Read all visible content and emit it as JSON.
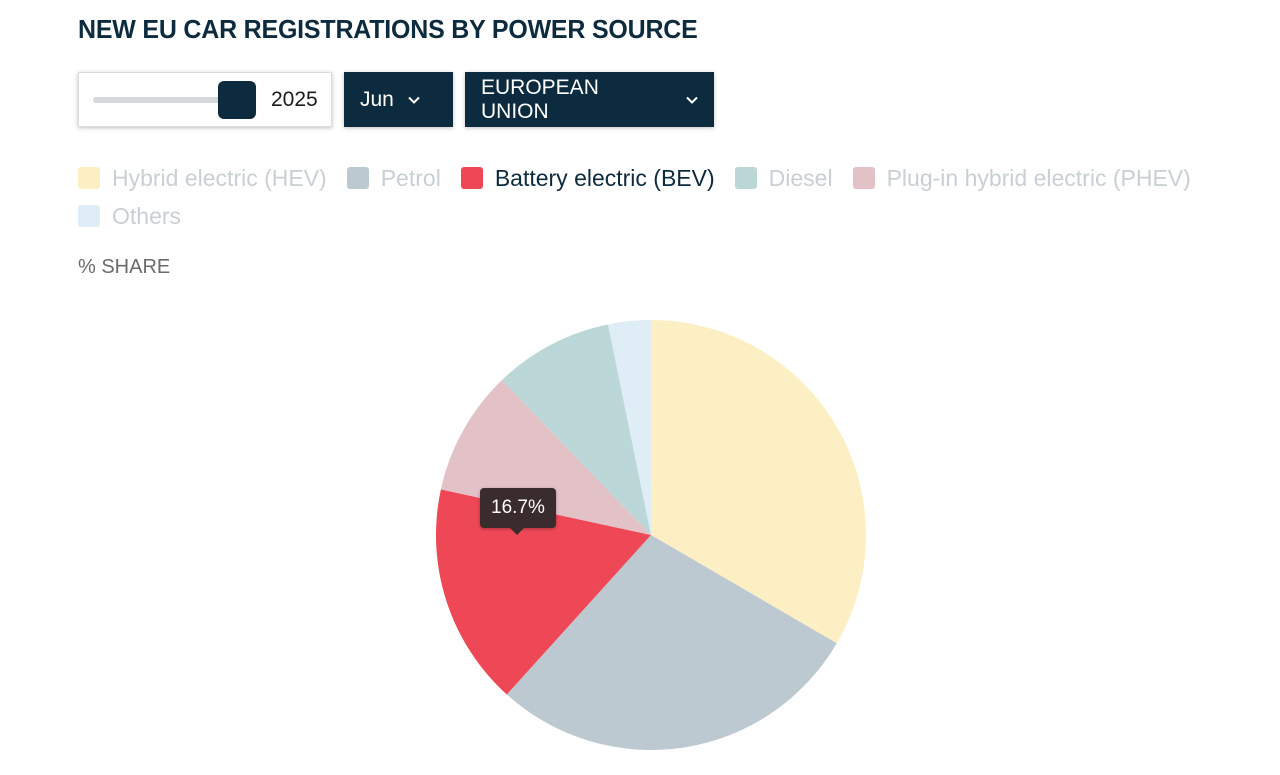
{
  "title": "NEW EU CAR REGISTRATIONS BY POWER SOURCE",
  "controls": {
    "year_slider_value": "2025",
    "month": "Jun",
    "region": "EUROPEAN UNION"
  },
  "subtitle": "% SHARE",
  "tooltip": "16.7%",
  "chart_data": {
    "type": "pie",
    "title": "NEW EU CAR REGISTRATIONS BY POWER SOURCE",
    "unit": "% SHARE",
    "highlighted": "Battery electric (BEV)",
    "slices": [
      {
        "label": "Hybrid electric (HEV)",
        "value": 33.4,
        "color": "#fcefc4"
      },
      {
        "label": "Petrol",
        "value": 28.3,
        "color": "#bdc9d0"
      },
      {
        "label": "Battery electric (BEV)",
        "value": 16.7,
        "color": "#ee4755"
      },
      {
        "label": "Plug-in hybrid electric (PHEV)",
        "value": 9.4,
        "color": "#e2c1c7"
      },
      {
        "label": "Diesel",
        "value": 9.0,
        "color": "#bcd7d8"
      },
      {
        "label": "Others",
        "value": 3.2,
        "color": "#deedf6"
      }
    ],
    "legend": [
      {
        "label": "Hybrid electric (HEV)",
        "color": "#fcefc4"
      },
      {
        "label": "Petrol",
        "color": "#bdc9d0"
      },
      {
        "label": "Battery electric (BEV)",
        "color": "#ee4755"
      },
      {
        "label": "Diesel",
        "color": "#bcd7d8"
      },
      {
        "label": "Plug-in hybrid electric (PHEV)",
        "color": "#e2c1c7"
      },
      {
        "label": "Others",
        "color": "#deedf6"
      }
    ],
    "legend_placement": "top"
  }
}
